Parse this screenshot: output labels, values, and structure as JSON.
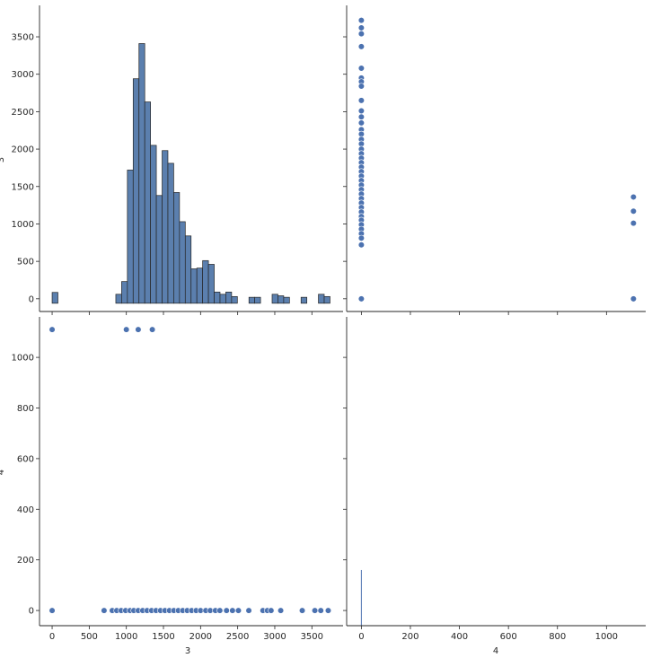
{
  "colors": {
    "bar_fill": "#5b7fae",
    "point_fill": "#4c72b0",
    "line_color": "#4c72b0",
    "axis": "#262626"
  },
  "chart_data": [
    {
      "type": "bar",
      "panel": "top-left",
      "xlabel": "",
      "ylabel": "3",
      "ylim": [
        -170,
        3920
      ],
      "y_ticks": [
        0,
        500,
        1000,
        1500,
        2000,
        2500,
        3000,
        3500
      ],
      "bin_width": 78,
      "bins_x0": [
        0,
        78,
        156,
        234,
        312,
        390,
        468,
        546,
        624,
        702,
        780,
        858,
        936,
        1014,
        1092,
        1170,
        1248,
        1326,
        1404,
        1482,
        1560,
        1638,
        1716,
        1794,
        1872,
        1950,
        2028,
        2106,
        2184,
        2262,
        2340,
        2418,
        2496,
        2574,
        2652,
        2730,
        2808,
        2886,
        2964,
        3042,
        3120,
        3198,
        3276,
        3354,
        3432,
        3510,
        3588,
        3666
      ],
      "values": [
        85,
        0,
        0,
        0,
        0,
        0,
        0,
        0,
        0,
        0,
        0,
        60,
        230,
        1720,
        2940,
        3410,
        2630,
        2050,
        1380,
        1980,
        1810,
        1420,
        1030,
        840,
        400,
        410,
        510,
        460,
        90,
        60,
        90,
        30,
        0,
        0,
        20,
        20,
        0,
        0,
        60,
        40,
        20,
        0,
        0,
        20,
        0,
        0,
        60,
        30
      ]
    },
    {
      "type": "scatter",
      "panel": "top-right",
      "xlabel": "",
      "ylabel": "",
      "xlim": [
        -60,
        1160
      ],
      "ylim": [
        -170,
        3920
      ],
      "points": [
        [
          0,
          3720
        ],
        [
          0,
          3620
        ],
        [
          0,
          3540
        ],
        [
          0,
          3370
        ],
        [
          0,
          3080
        ],
        [
          0,
          2950
        ],
        [
          0,
          2900
        ],
        [
          0,
          2840
        ],
        [
          0,
          2650
        ],
        [
          0,
          2510
        ],
        [
          0,
          2430
        ],
        [
          0,
          2350
        ],
        [
          0,
          2260
        ],
        [
          0,
          2200
        ],
        [
          0,
          2130
        ],
        [
          0,
          2070
        ],
        [
          0,
          2000
        ],
        [
          0,
          1940
        ],
        [
          0,
          1880
        ],
        [
          0,
          1820
        ],
        [
          0,
          1760
        ],
        [
          0,
          1700
        ],
        [
          0,
          1640
        ],
        [
          0,
          1580
        ],
        [
          0,
          1520
        ],
        [
          0,
          1460
        ],
        [
          0,
          1400
        ],
        [
          0,
          1340
        ],
        [
          0,
          1280
        ],
        [
          0,
          1220
        ],
        [
          0,
          1160
        ],
        [
          0,
          1100
        ],
        [
          0,
          1050
        ],
        [
          0,
          990
        ],
        [
          0,
          930
        ],
        [
          0,
          870
        ],
        [
          0,
          810
        ],
        [
          0,
          720
        ],
        [
          0,
          0
        ],
        [
          1110,
          1360
        ],
        [
          1110,
          1170
        ],
        [
          1110,
          1010
        ],
        [
          1110,
          0
        ]
      ]
    },
    {
      "type": "scatter",
      "panel": "bottom-left",
      "xlabel": "3",
      "ylabel": "4",
      "xlim": [
        -170,
        3920
      ],
      "ylim": [
        -60,
        1160
      ],
      "x_ticks": [
        0,
        500,
        1000,
        1500,
        2000,
        2500,
        3000,
        3500
      ],
      "y_ticks": [
        0,
        200,
        400,
        600,
        800,
        1000
      ],
      "points": [
        [
          0,
          1110
        ],
        [
          1000,
          1110
        ],
        [
          1160,
          1110
        ],
        [
          1350,
          1110
        ],
        [
          0,
          0
        ],
        [
          700,
          0
        ],
        [
          810,
          0
        ],
        [
          870,
          0
        ],
        [
          930,
          0
        ],
        [
          990,
          0
        ],
        [
          1050,
          0
        ],
        [
          1100,
          0
        ],
        [
          1160,
          0
        ],
        [
          1220,
          0
        ],
        [
          1280,
          0
        ],
        [
          1340,
          0
        ],
        [
          1400,
          0
        ],
        [
          1460,
          0
        ],
        [
          1520,
          0
        ],
        [
          1580,
          0
        ],
        [
          1640,
          0
        ],
        [
          1700,
          0
        ],
        [
          1760,
          0
        ],
        [
          1820,
          0
        ],
        [
          1880,
          0
        ],
        [
          1940,
          0
        ],
        [
          2000,
          0
        ],
        [
          2070,
          0
        ],
        [
          2130,
          0
        ],
        [
          2200,
          0
        ],
        [
          2260,
          0
        ],
        [
          2350,
          0
        ],
        [
          2430,
          0
        ],
        [
          2510,
          0
        ],
        [
          2650,
          0
        ],
        [
          2840,
          0
        ],
        [
          2900,
          0
        ],
        [
          2950,
          0
        ],
        [
          3080,
          0
        ],
        [
          3370,
          0
        ],
        [
          3540,
          0
        ],
        [
          3620,
          0
        ],
        [
          3720,
          0
        ]
      ]
    },
    {
      "type": "bar",
      "panel": "bottom-right",
      "xlabel": "4",
      "ylabel": "",
      "xlim": [
        -60,
        1160
      ],
      "x_ticks": [
        0,
        200,
        400,
        600,
        800,
        1000
      ],
      "ylim": [
        -60,
        1160
      ],
      "bin_x": 0,
      "value": 160
    }
  ]
}
